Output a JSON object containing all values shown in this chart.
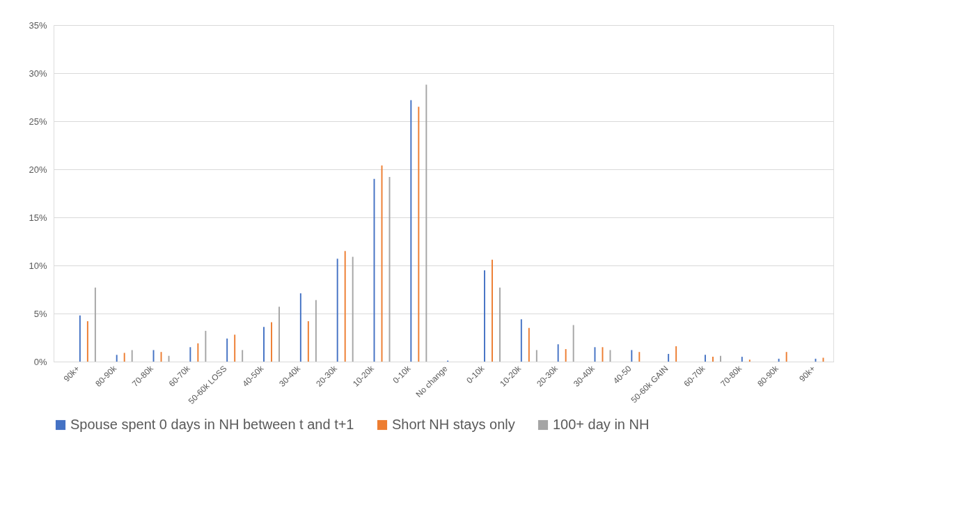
{
  "chart_data": {
    "type": "bar",
    "categories": [
      "90k+",
      "80-90k",
      "70-80k",
      "60-70k",
      "50-60k LOSS",
      "40-50k",
      "30-40k",
      "20-30k",
      "10-20k",
      "0-10k",
      "No change",
      "0-10k",
      "10-20k",
      "20-30k",
      "30-40k",
      "40-50",
      "50-60k GAIN",
      "60-70k",
      "70-80k",
      "80-90k",
      "90k+"
    ],
    "series": [
      {
        "name": "Spouse spent 0 days in NH between t and t+1",
        "color": "#4472c4",
        "values": [
          4.8,
          0.7,
          1.2,
          1.5,
          2.4,
          3.6,
          7.1,
          10.7,
          19.0,
          27.2,
          0.1,
          9.5,
          4.4,
          1.8,
          1.5,
          1.2,
          0.8,
          0.7,
          0.5,
          0.3,
          0.3
        ]
      },
      {
        "name": "Short NH stays only",
        "color": "#ed7d31",
        "values": [
          4.2,
          0.9,
          1.0,
          1.9,
          2.8,
          4.1,
          4.2,
          11.5,
          20.4,
          26.5,
          null,
          10.6,
          3.5,
          1.3,
          1.5,
          1.0,
          1.6,
          0.5,
          0.2,
          1.0,
          0.4
        ]
      },
      {
        "name": "100+ day in NH",
        "color": "#a5a5a5",
        "values": [
          7.7,
          1.2,
          0.6,
          3.2,
          1.2,
          5.7,
          6.4,
          10.9,
          19.2,
          28.8,
          null,
          7.7,
          1.2,
          3.8,
          1.2,
          null,
          null,
          0.6,
          null,
          null,
          null
        ]
      }
    ],
    "ylim": [
      0,
      35
    ],
    "yticks": [
      {
        "value": 0,
        "label": "0%"
      },
      {
        "value": 5,
        "label": "5%"
      },
      {
        "value": 10,
        "label": "10%"
      },
      {
        "value": 15,
        "label": "15%"
      },
      {
        "value": 20,
        "label": "20%"
      },
      {
        "value": 25,
        "label": "25%"
      },
      {
        "value": 30,
        "label": "30%"
      },
      {
        "value": 35,
        "label": "35%"
      }
    ],
    "grid": "y",
    "legend": "bottom"
  }
}
